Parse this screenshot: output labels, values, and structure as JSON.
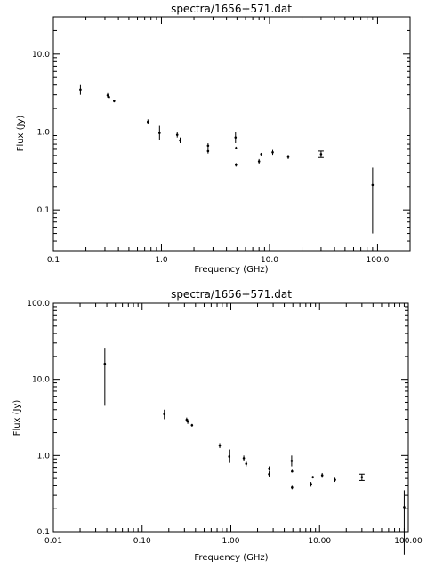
{
  "chart_data": [
    {
      "type": "scatter",
      "title": "spectra/1656+571.dat",
      "xlabel": "Frequency (GHz)",
      "ylabel": "Flux (Jy)",
      "xscale": "log",
      "yscale": "log",
      "xlim": [
        0.1,
        200
      ],
      "ylim": [
        0.03,
        30
      ],
      "xticks": [
        0.1,
        1.0,
        10.0,
        100.0
      ],
      "xtick_labels": [
        "0.1",
        "1.0",
        "10.0",
        "100.0"
      ],
      "yticks": [
        0.1,
        1.0,
        10.0
      ],
      "ytick_labels": [
        "0.1",
        "1.0",
        "10.0"
      ],
      "grid": false,
      "points": [
        {
          "x": 0.178,
          "y": 3.5,
          "ylo": 3.0,
          "yhi": 4.0
        },
        {
          "x": 0.318,
          "y": 2.95,
          "ylo": 2.75,
          "yhi": 3.15
        },
        {
          "x": 0.327,
          "y": 2.8,
          "ylo": 2.6,
          "yhi": 3.0
        },
        {
          "x": 0.365,
          "y": 2.5,
          "ylo": 2.4,
          "yhi": 2.6
        },
        {
          "x": 0.75,
          "y": 1.35,
          "ylo": 1.25,
          "yhi": 1.45
        },
        {
          "x": 0.96,
          "y": 0.97,
          "ylo": 0.8,
          "yhi": 1.2
        },
        {
          "x": 1.4,
          "y": 0.92,
          "ylo": 0.85,
          "yhi": 1.0
        },
        {
          "x": 1.49,
          "y": 0.78,
          "ylo": 0.72,
          "yhi": 0.85
        },
        {
          "x": 2.7,
          "y": 0.67,
          "ylo": 0.63,
          "yhi": 0.72
        },
        {
          "x": 2.7,
          "y": 0.57,
          "ylo": 0.53,
          "yhi": 0.62
        },
        {
          "x": 4.85,
          "y": 0.85,
          "ylo": 0.72,
          "yhi": 1.0
        },
        {
          "x": 4.9,
          "y": 0.62,
          "ylo": 0.6,
          "yhi": 0.65
        },
        {
          "x": 4.9,
          "y": 0.38,
          "ylo": 0.36,
          "yhi": 0.4
        },
        {
          "x": 8.0,
          "y": 0.42,
          "ylo": 0.39,
          "yhi": 0.45
        },
        {
          "x": 8.4,
          "y": 0.52,
          "ylo": 0.5,
          "yhi": 0.54
        },
        {
          "x": 10.7,
          "y": 0.55,
          "ylo": 0.51,
          "yhi": 0.59
        },
        {
          "x": 14.9,
          "y": 0.48,
          "ylo": 0.45,
          "yhi": 0.51
        },
        {
          "x": 30.0,
          "y": 0.52,
          "ylo": 0.47,
          "yhi": 0.57,
          "caps": true
        },
        {
          "x": 90.0,
          "y": 0.21,
          "ylo": 0.05,
          "yhi": 0.35
        }
      ]
    },
    {
      "type": "scatter",
      "title": "spectra/1656+571.dat",
      "xlabel": "Frequency (GHz)",
      "ylabel": "Flux (Jy)",
      "xscale": "log",
      "yscale": "log",
      "xlim": [
        0.01,
        100
      ],
      "ylim": [
        0.1,
        100
      ],
      "xticks": [
        0.01,
        0.1,
        1.0,
        10.0,
        100.0
      ],
      "xtick_labels": [
        "0.01",
        "0.10",
        "1.00",
        "10.00",
        "100.00"
      ],
      "yticks": [
        0.1,
        1.0,
        10.0,
        100.0
      ],
      "ytick_labels": [
        "0.1",
        "1.0",
        "10.0",
        "100.0"
      ],
      "grid": false,
      "points": [
        {
          "x": 0.038,
          "y": 16.0,
          "ylo": 4.5,
          "yhi": 26.0
        },
        {
          "x": 0.178,
          "y": 3.5,
          "ylo": 3.0,
          "yhi": 4.0
        },
        {
          "x": 0.318,
          "y": 2.95,
          "ylo": 2.75,
          "yhi": 3.15
        },
        {
          "x": 0.327,
          "y": 2.8,
          "ylo": 2.6,
          "yhi": 3.0
        },
        {
          "x": 0.365,
          "y": 2.5,
          "ylo": 2.4,
          "yhi": 2.6
        },
        {
          "x": 0.75,
          "y": 1.35,
          "ylo": 1.25,
          "yhi": 1.45
        },
        {
          "x": 0.96,
          "y": 0.97,
          "ylo": 0.8,
          "yhi": 1.2
        },
        {
          "x": 1.4,
          "y": 0.92,
          "ylo": 0.85,
          "yhi": 1.0
        },
        {
          "x": 1.49,
          "y": 0.78,
          "ylo": 0.72,
          "yhi": 0.85
        },
        {
          "x": 2.7,
          "y": 0.67,
          "ylo": 0.63,
          "yhi": 0.72
        },
        {
          "x": 2.7,
          "y": 0.57,
          "ylo": 0.53,
          "yhi": 0.62
        },
        {
          "x": 4.85,
          "y": 0.85,
          "ylo": 0.72,
          "yhi": 1.0
        },
        {
          "x": 4.9,
          "y": 0.62,
          "ylo": 0.6,
          "yhi": 0.65
        },
        {
          "x": 4.9,
          "y": 0.38,
          "ylo": 0.36,
          "yhi": 0.4
        },
        {
          "x": 8.0,
          "y": 0.42,
          "ylo": 0.39,
          "yhi": 0.45
        },
        {
          "x": 8.4,
          "y": 0.52,
          "ylo": 0.5,
          "yhi": 0.54
        },
        {
          "x": 10.7,
          "y": 0.55,
          "ylo": 0.51,
          "yhi": 0.59
        },
        {
          "x": 14.9,
          "y": 0.48,
          "ylo": 0.45,
          "yhi": 0.51
        },
        {
          "x": 30.0,
          "y": 0.52,
          "ylo": 0.47,
          "yhi": 0.57,
          "caps": true
        },
        {
          "x": 90.0,
          "y": 0.21,
          "ylo": 0.05,
          "yhi": 0.35
        }
      ]
    }
  ]
}
